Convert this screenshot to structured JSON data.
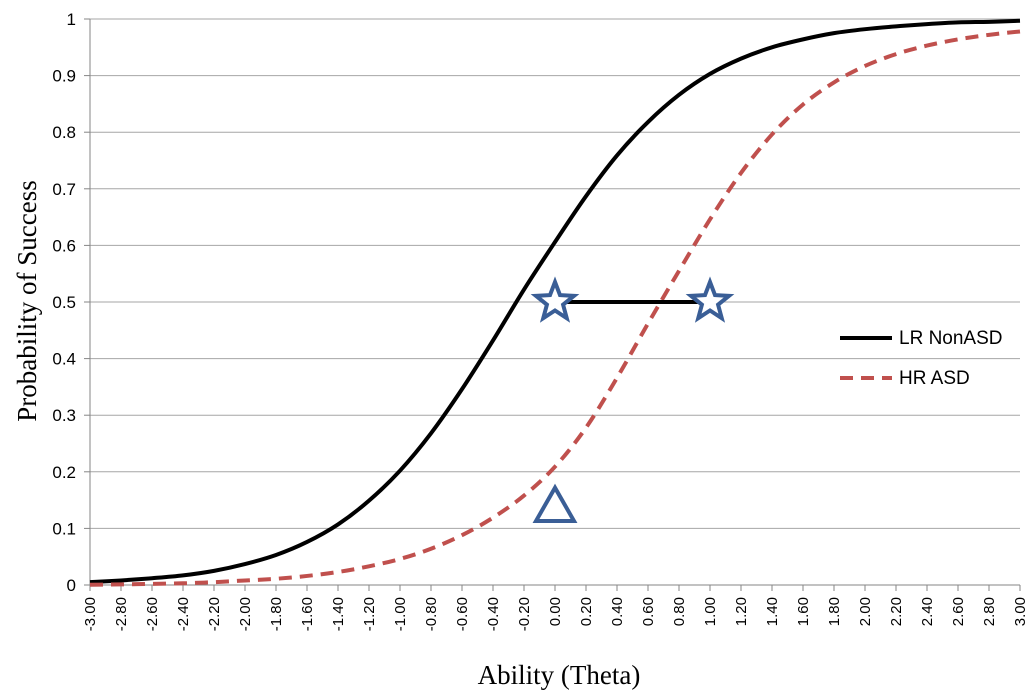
{
  "chart_data": {
    "type": "line",
    "title": "",
    "xlabel": "Ability (Theta)",
    "ylabel": "Probability of Success",
    "xlim": [
      -3.0,
      3.0
    ],
    "ylim": [
      0,
      1
    ],
    "grid": "horizontal",
    "legend_position": "right",
    "x_ticks": [
      "-3.00",
      "-2.80",
      "-2.60",
      "-2.40",
      "-2.20",
      "-2.00",
      "-1.80",
      "-1.60",
      "-1.40",
      "-1.20",
      "-1.00",
      "-0.80",
      "-0.60",
      "-0.40",
      "-0.20",
      "0.00",
      "0.20",
      "0.40",
      "0.60",
      "0.80",
      "1.00",
      "1.20",
      "1.40",
      "1.60",
      "1.80",
      "2.00",
      "2.20",
      "2.40",
      "2.60",
      "2.80",
      "3.00"
    ],
    "y_ticks": [
      "0",
      "0.1",
      "0.2",
      "0.3",
      "0.4",
      "0.5",
      "0.6",
      "0.7",
      "0.8",
      "0.9",
      "1"
    ],
    "series": [
      {
        "name": "LR NonASD",
        "style": "solid",
        "color": "#000000",
        "x": [
          -3.0,
          -2.8,
          -2.6,
          -2.4,
          -2.2,
          -2.0,
          -1.8,
          -1.6,
          -1.4,
          -1.2,
          -1.0,
          -0.8,
          -0.6,
          -0.4,
          -0.2,
          0.0,
          0.2,
          0.4,
          0.6,
          0.8,
          1.0,
          1.2,
          1.4,
          1.6,
          1.8,
          2.0,
          2.2,
          2.4,
          2.6,
          2.8,
          3.0
        ],
        "values": [
          0.005,
          0.008,
          0.012,
          0.017,
          0.025,
          0.037,
          0.053,
          0.076,
          0.107,
          0.149,
          0.202,
          0.268,
          0.346,
          0.432,
          0.522,
          0.606,
          0.687,
          0.759,
          0.818,
          0.866,
          0.903,
          0.93,
          0.95,
          0.964,
          0.975,
          0.982,
          0.987,
          0.991,
          0.994,
          0.995,
          0.997
        ]
      },
      {
        "name": "HR ASD",
        "style": "dashed",
        "color": "#C0504D",
        "x": [
          -3.0,
          -2.8,
          -2.6,
          -2.4,
          -2.2,
          -2.0,
          -1.8,
          -1.6,
          -1.4,
          -1.2,
          -1.0,
          -0.8,
          -0.6,
          -0.4,
          -0.2,
          0.0,
          0.2,
          0.4,
          0.6,
          0.8,
          1.0,
          1.2,
          1.4,
          1.6,
          1.8,
          2.0,
          2.2,
          2.4,
          2.6,
          2.8,
          3.0
        ],
        "values": [
          0.0005,
          0.001,
          0.002,
          0.003,
          0.005,
          0.008,
          0.011,
          0.016,
          0.023,
          0.033,
          0.046,
          0.064,
          0.088,
          0.119,
          0.158,
          0.209,
          0.278,
          0.366,
          0.462,
          0.555,
          0.646,
          0.728,
          0.796,
          0.849,
          0.888,
          0.917,
          0.938,
          0.953,
          0.964,
          0.972,
          0.978
        ]
      }
    ],
    "annotations": [
      {
        "type": "star",
        "x": 0.0,
        "y": 0.5
      },
      {
        "type": "star",
        "x": 1.0,
        "y": 0.5
      },
      {
        "type": "line",
        "x1": 0.0,
        "y1": 0.5,
        "x2": 1.0,
        "y2": 0.5
      },
      {
        "type": "triangle",
        "x": 0.0,
        "y": 0.14
      }
    ],
    "colors": {
      "marker_stroke": "#3A5E96",
      "grid": "#A6A6A6"
    }
  }
}
